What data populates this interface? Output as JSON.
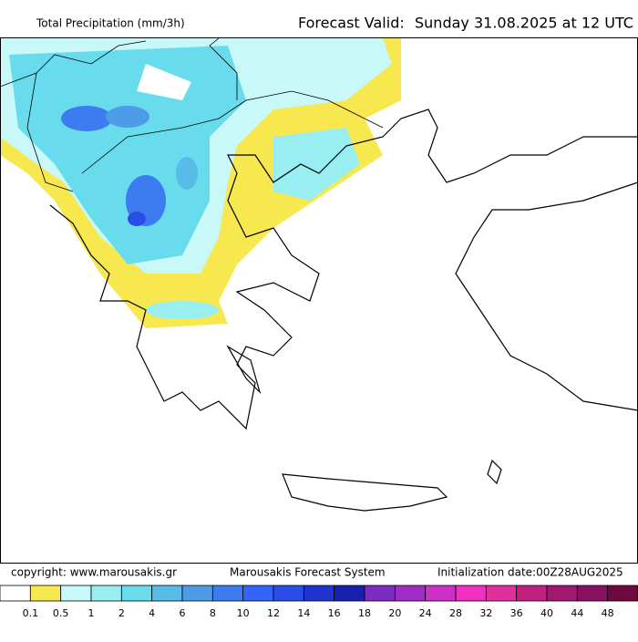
{
  "header": {
    "title": "Total Precipitation (mm/3h)",
    "valid_label": "Forecast Valid:",
    "valid_value": "Sunday 31.08.2025 at 12 UTC"
  },
  "footer": {
    "copyright": "copyright: www.marousakis.gr",
    "system": "Marousakis Forecast System",
    "init": "Initialization date:00Z28AUG2025"
  },
  "legend": {
    "levels": [
      0.1,
      0.5,
      1,
      2,
      4,
      6,
      8,
      10,
      12,
      14,
      16,
      18,
      20,
      24,
      28,
      32,
      36,
      40,
      44,
      48
    ],
    "colors": [
      "#ffffff",
      "#f8e850",
      "#c8f8f8",
      "#98eef0",
      "#68dcec",
      "#58bce8",
      "#4c9ce8",
      "#3c7cf0",
      "#3264f8",
      "#2a4ce8",
      "#2034d0",
      "#1820b0",
      "#7c2cc0",
      "#a02cc8",
      "#cc30c8",
      "#f030c0",
      "#e0309c",
      "#c02080",
      "#a01870",
      "#881060",
      "#700840"
    ]
  }
}
